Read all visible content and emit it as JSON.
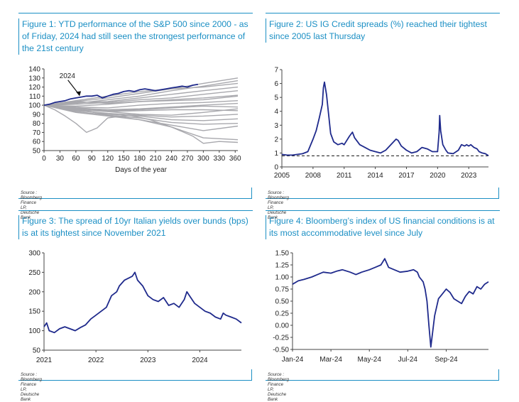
{
  "colors": {
    "accent": "#1b8fc4",
    "series": "#1f2a8c",
    "other_years": "#a8a8ad"
  },
  "chart_data": [
    {
      "type": "line",
      "title": "Figure 1: YTD performance of the S&P 500 since 2000 - as of Friday, 2024 had still seen the strongest performance of the 21st century",
      "source": "Source : Bloomberg Finance LP, Deutsche Bank",
      "xlabel": "Days of the year",
      "xlim": [
        0,
        365
      ],
      "ylim": [
        50,
        140
      ],
      "xticks": [
        "0",
        "30",
        "60",
        "90",
        "120",
        "150",
        "180",
        "210",
        "240",
        "270",
        "300",
        "330",
        "360"
      ],
      "yticks": [
        "50",
        "60",
        "70",
        "80",
        "90",
        "100",
        "110",
        "120",
        "130",
        "140"
      ],
      "annotation": "2024",
      "series": [
        {
          "name": "2024",
          "highlight": true,
          "x": [
            0,
            10,
            20,
            30,
            40,
            50,
            60,
            70,
            80,
            90,
            100,
            110,
            120,
            130,
            140,
            150,
            160,
            170,
            180,
            190,
            200,
            210,
            220,
            230,
            240,
            250,
            260,
            270,
            280,
            290
          ],
          "values": [
            100,
            101,
            103,
            104,
            105,
            107,
            108,
            109,
            110,
            110,
            111,
            108,
            110,
            112,
            113,
            115,
            116,
            115,
            117,
            118,
            117,
            116,
            117,
            118,
            119,
            120,
            121,
            120,
            122,
            123
          ]
        },
        {
          "x": [
            0,
            60,
            120,
            180,
            240,
            300,
            365
          ],
          "values": [
            100,
            104,
            108,
            113,
            118,
            124,
            130
          ]
        },
        {
          "x": [
            0,
            60,
            120,
            180,
            240,
            300,
            365
          ],
          "values": [
            100,
            102,
            106,
            110,
            116,
            121,
            127
          ]
        },
        {
          "x": [
            0,
            60,
            120,
            180,
            240,
            300,
            365
          ],
          "values": [
            100,
            105,
            110,
            115,
            118,
            120,
            124
          ]
        },
        {
          "x": [
            0,
            60,
            120,
            180,
            240,
            300,
            365
          ],
          "values": [
            100,
            103,
            104,
            108,
            112,
            116,
            120
          ]
        },
        {
          "x": [
            0,
            60,
            120,
            180,
            240,
            300,
            365
          ],
          "values": [
            100,
            101,
            103,
            106,
            108,
            112,
            116
          ]
        },
        {
          "x": [
            0,
            60,
            120,
            180,
            240,
            300,
            365
          ],
          "values": [
            100,
            99,
            101,
            104,
            106,
            108,
            111
          ]
        },
        {
          "x": [
            0,
            60,
            120,
            180,
            240,
            300,
            365
          ],
          "values": [
            100,
            98,
            97,
            100,
            102,
            103,
            105
          ]
        },
        {
          "x": [
            0,
            60,
            120,
            180,
            240,
            300,
            365
          ],
          "values": [
            100,
            97,
            95,
            96,
            98,
            100,
            102
          ]
        },
        {
          "x": [
            0,
            60,
            120,
            180,
            240,
            300,
            365
          ],
          "values": [
            100,
            96,
            94,
            95,
            97,
            99,
            98
          ]
        },
        {
          "x": [
            0,
            60,
            120,
            180,
            240,
            300,
            365
          ],
          "values": [
            100,
            95,
            93,
            94,
            95,
            95,
            94
          ]
        },
        {
          "x": [
            0,
            60,
            120,
            180,
            240,
            300,
            365
          ],
          "values": [
            100,
            97,
            93,
            90,
            89,
            92,
            96
          ]
        },
        {
          "x": [
            0,
            60,
            120,
            180,
            240,
            300,
            365
          ],
          "values": [
            100,
            94,
            91,
            89,
            87,
            88,
            90
          ]
        },
        {
          "x": [
            0,
            60,
            120,
            180,
            240,
            300,
            365
          ],
          "values": [
            100,
            95,
            90,
            88,
            84,
            83,
            85
          ]
        },
        {
          "x": [
            0,
            60,
            120,
            180,
            240,
            300,
            365
          ],
          "values": [
            100,
            93,
            89,
            86,
            81,
            79,
            80
          ]
        },
        {
          "x": [
            0,
            60,
            120,
            180,
            240,
            300,
            365
          ],
          "values": [
            100,
            96,
            89,
            84,
            78,
            72,
            77
          ]
        },
        {
          "x": [
            0,
            60,
            120,
            180,
            240,
            300,
            365
          ],
          "values": [
            100,
            92,
            88,
            84,
            76,
            64,
            62
          ]
        },
        {
          "x": [
            0,
            20,
            40,
            60,
            80,
            100,
            120,
            160,
            200,
            240,
            280,
            300,
            330,
            365
          ],
          "values": [
            100,
            95,
            88,
            80,
            70,
            75,
            86,
            89,
            84,
            76,
            66,
            58,
            60,
            59
          ]
        },
        {
          "x": [
            0,
            60,
            120,
            180,
            240,
            300,
            365
          ],
          "values": [
            100,
            104,
            102,
            104,
            105,
            106,
            110
          ]
        }
      ]
    },
    {
      "type": "line",
      "title": "Figure 2: US IG Credit spreads (%) reached their tightest since 2005 last Thursday",
      "source": "Source : Bloomberg Finance LP, Deutsche Bank",
      "xlim": [
        2005,
        2024.9
      ],
      "ylim": [
        0,
        7
      ],
      "xticks": [
        "2005",
        "2008",
        "2011",
        "2014",
        "2017",
        "2020",
        "2023"
      ],
      "yticks": [
        "0",
        "1",
        "2",
        "3",
        "4",
        "5",
        "6",
        "7"
      ],
      "reference_line": 0.8,
      "series": [
        {
          "x": [
            2005,
            2005.5,
            2006,
            2006.5,
            2007,
            2007.5,
            2008,
            2008.3,
            2008.6,
            2008.9,
            2009,
            2009.1,
            2009.3,
            2009.5,
            2009.7,
            2010,
            2010.4,
            2010.8,
            2011,
            2011.5,
            2011.8,
            2012,
            2012.5,
            2013,
            2013.5,
            2014,
            2014.5,
            2015,
            2015.5,
            2016,
            2016.2,
            2016.5,
            2017,
            2017.5,
            2018,
            2018.5,
            2019,
            2019.5,
            2020,
            2020.15,
            2020.2,
            2020.3,
            2020.5,
            2020.8,
            2021,
            2021.5,
            2022,
            2022.3,
            2022.6,
            2022.8,
            2023,
            2023.2,
            2023.5,
            2023.8,
            2024,
            2024.3,
            2024.6,
            2024.9
          ],
          "values": [
            0.9,
            0.85,
            0.85,
            0.9,
            0.95,
            1.1,
            2.0,
            2.6,
            3.5,
            4.5,
            5.7,
            6.1,
            5.2,
            3.8,
            2.4,
            1.8,
            1.6,
            1.7,
            1.6,
            2.2,
            2.5,
            2.1,
            1.6,
            1.4,
            1.2,
            1.1,
            1.0,
            1.2,
            1.6,
            2.0,
            1.9,
            1.5,
            1.2,
            1.0,
            1.1,
            1.4,
            1.3,
            1.1,
            1.1,
            2.5,
            3.7,
            2.6,
            1.6,
            1.2,
            1.0,
            0.95,
            1.2,
            1.6,
            1.5,
            1.6,
            1.5,
            1.6,
            1.4,
            1.3,
            1.1,
            1.0,
            0.95,
            0.8
          ]
        }
      ]
    },
    {
      "type": "line",
      "title": "Figure 3: The spread of 10yr Italian yields over bunds (bps) is at its tightest since November 2021",
      "source": "Source : Bloomberg Finance LP, Deutsche Bank",
      "xlim": [
        2021,
        2024.8
      ],
      "ylim": [
        50,
        300
      ],
      "xticks": [
        "2021",
        "2022",
        "2023",
        "2024"
      ],
      "yticks": [
        "50",
        "100",
        "150",
        "200",
        "250",
        "300"
      ],
      "series": [
        {
          "x": [
            2021,
            2021.05,
            2021.1,
            2021.2,
            2021.3,
            2021.4,
            2021.5,
            2021.6,
            2021.7,
            2021.8,
            2021.9,
            2022,
            2022.1,
            2022.2,
            2022.3,
            2022.4,
            2022.45,
            2022.55,
            2022.7,
            2022.75,
            2022.8,
            2022.9,
            2023,
            2023.1,
            2023.2,
            2023.3,
            2023.4,
            2023.5,
            2023.6,
            2023.7,
            2023.75,
            2023.8,
            2023.9,
            2024,
            2024.1,
            2024.2,
            2024.3,
            2024.4,
            2024.45,
            2024.5,
            2024.6,
            2024.7,
            2024.8
          ],
          "values": [
            110,
            120,
            100,
            95,
            105,
            110,
            105,
            100,
            108,
            115,
            130,
            140,
            150,
            160,
            190,
            200,
            215,
            230,
            240,
            250,
            230,
            215,
            190,
            180,
            175,
            185,
            165,
            170,
            160,
            180,
            200,
            190,
            170,
            160,
            150,
            145,
            135,
            130,
            145,
            140,
            135,
            130,
            120
          ]
        }
      ]
    },
    {
      "type": "line",
      "title": "Figure 4: Bloomberg’s index of US financial conditions is at its most accommodative level since July",
      "source": "Source : Bloomberg Finance LP, Deutsche Bank",
      "xlim": [
        0,
        10.2
      ],
      "ylim": [
        -0.5,
        1.5
      ],
      "xticks": [
        {
          "label": "Jan-24",
          "pos": 0
        },
        {
          "label": "Mar-24",
          "pos": 2
        },
        {
          "label": "May-24",
          "pos": 4
        },
        {
          "label": "Jul-24",
          "pos": 6
        },
        {
          "label": "Sep-24",
          "pos": 8
        }
      ],
      "yticks": [
        "-0.50",
        "-0.25",
        "0.00",
        "0.25",
        "0.50",
        "0.75",
        "1.00",
        "1.25",
        "1.50"
      ],
      "series": [
        {
          "x": [
            0,
            0.3,
            0.6,
            1,
            1.3,
            1.6,
            2,
            2.3,
            2.6,
            3,
            3.3,
            3.6,
            4,
            4.3,
            4.6,
            4.8,
            5,
            5.3,
            5.6,
            6,
            6.3,
            6.5,
            6.6,
            6.8,
            6.9,
            7.0,
            7.1,
            7.2,
            7.4,
            7.6,
            7.8,
            8,
            8.2,
            8.4,
            8.6,
            8.8,
            9,
            9.2,
            9.4,
            9.6,
            9.8,
            10.0,
            10.2
          ],
          "values": [
            0.85,
            0.92,
            0.95,
            1.0,
            1.05,
            1.1,
            1.08,
            1.12,
            1.15,
            1.1,
            1.05,
            1.1,
            1.15,
            1.2,
            1.25,
            1.38,
            1.2,
            1.15,
            1.1,
            1.12,
            1.15,
            1.1,
            1.0,
            0.9,
            0.75,
            0.5,
            0.0,
            -0.45,
            0.2,
            0.55,
            0.65,
            0.75,
            0.68,
            0.55,
            0.5,
            0.45,
            0.6,
            0.7,
            0.65,
            0.8,
            0.75,
            0.85,
            0.9
          ]
        }
      ]
    }
  ]
}
